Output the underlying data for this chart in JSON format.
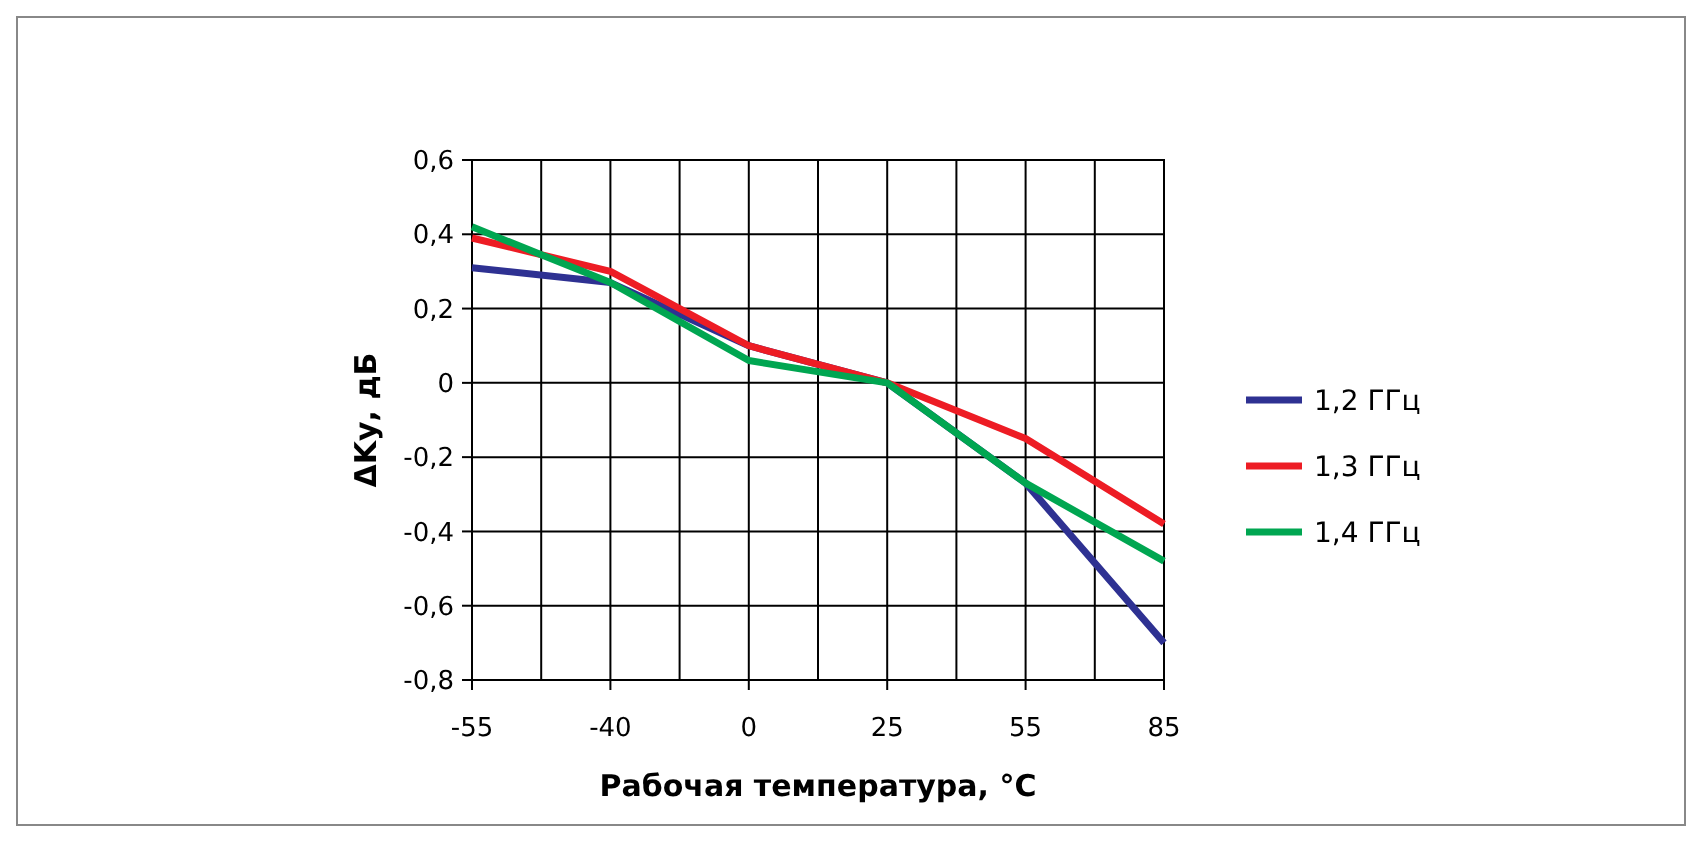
{
  "chart_data": {
    "type": "line",
    "xlabel": "Рабочая температура, °C",
    "ylabel": "ΔKу, дБ",
    "categories": [
      "-55",
      "-40",
      "0",
      "25",
      "55",
      "85"
    ],
    "series": [
      {
        "name": "1,2 ГГц",
        "color": "#2e3192",
        "values": [
          0.31,
          0.27,
          0.1,
          0,
          -0.27,
          -0.7
        ]
      },
      {
        "name": "1,3 ГГц",
        "color": "#ed1c24",
        "values": [
          0.39,
          0.3,
          0.1,
          0,
          -0.15,
          -0.38
        ]
      },
      {
        "name": "1,4 ГГц",
        "color": "#00a651",
        "values": [
          0.42,
          0.27,
          0.06,
          0,
          -0.27,
          -0.48
        ]
      }
    ],
    "ylim": [
      -0.8,
      0.6
    ],
    "yticks": [
      {
        "value": -0.8,
        "label": "-0,8"
      },
      {
        "value": -0.6,
        "label": "-0,6"
      },
      {
        "value": -0.4,
        "label": "-0,4"
      },
      {
        "value": -0.2,
        "label": "-0,2"
      },
      0,
      {
        "value": 0.2,
        "label": "0,2"
      },
      {
        "value": 0.4,
        "label": "0,4"
      },
      {
        "value": 0.6,
        "label": "0,6"
      }
    ],
    "grid": true,
    "legend": "right",
    "marker": "none",
    "line_style": "solid"
  }
}
